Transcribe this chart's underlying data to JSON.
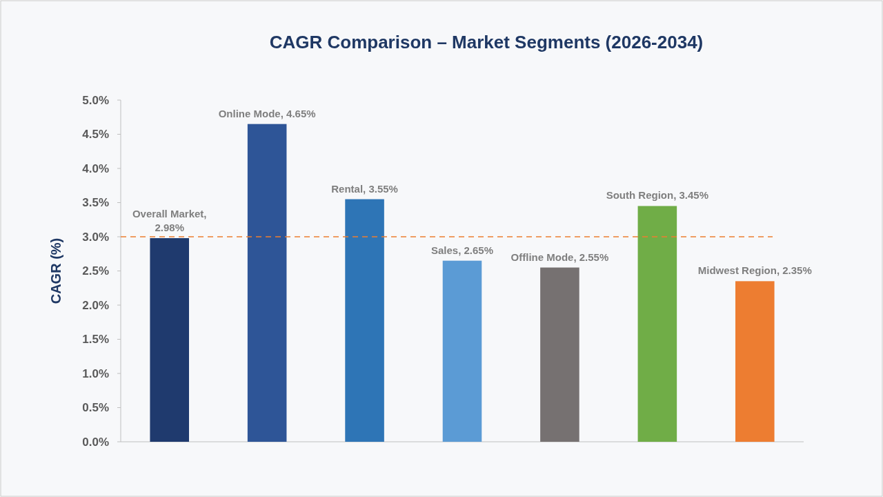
{
  "chart_data": {
    "type": "bar",
    "title": "CAGR Comparison – Market Segments (2026-2034)",
    "ylabel": "CAGR (%)",
    "categories": [
      null,
      null,
      null,
      null,
      null,
      null,
      null
    ],
    "values": [
      2.98,
      4.65,
      3.55,
      2.65,
      2.55,
      3.45,
      2.35
    ],
    "colors": [
      "#1f3a6e",
      "#2e5597",
      "#2e75b6",
      "#5b9bd5",
      "#767171",
      "#70ad47",
      "#ed7d31"
    ],
    "value_labels": [
      "Overall Market, 2.98%",
      "Online Mode, 4.65%",
      "Rental, 3.55%",
      "Sales, 2.65%",
      "Offline Mode, 2.55%",
      "South Region, 3.45%",
      "Midwest Region, 2.35%"
    ],
    "ylim": [
      0,
      5
    ],
    "yticks": [
      {
        "value": 0,
        "label": "0.0%"
      },
      {
        "value": 0.5,
        "label": "0.5%"
      },
      {
        "value": 1,
        "label": "1.0%"
      },
      {
        "value": 1.5,
        "label": "1.5%"
      },
      {
        "value": 2,
        "label": "2.0%"
      },
      {
        "value": 2.5,
        "label": "2.5%"
      },
      {
        "value": 3,
        "label": "3.0%"
      },
      {
        "value": 3.5,
        "label": "3.5%"
      },
      {
        "value": 4,
        "label": "4.0%"
      },
      {
        "value": 4.5,
        "label": "4.5%"
      },
      {
        "value": 5,
        "label": "5.0%"
      }
    ],
    "ref_lines": [
      {
        "axis": "y",
        "value": 3,
        "color": "#ed7d31",
        "line_style": "dashed"
      }
    ],
    "grid": false
  }
}
